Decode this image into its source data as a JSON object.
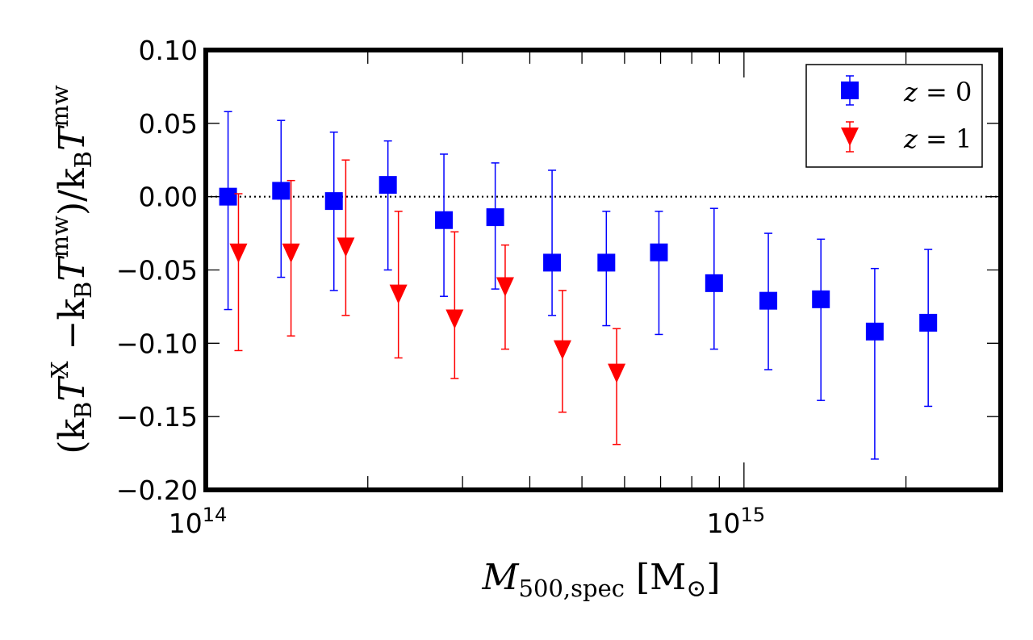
{
  "chart_data": {
    "type": "scatter",
    "xscale": "log",
    "xlim": [
      100000000000000.0,
      3000000000000000.0
    ],
    "ylim": [
      -0.2,
      0.1
    ],
    "yticks": [
      -0.2,
      -0.15,
      -0.1,
      -0.05,
      0.0,
      0.05,
      0.1
    ],
    "ytick_labels": [
      "−0.20",
      "−0.15",
      "−0.10",
      "−0.05",
      "0.00",
      "0.05",
      "0.10"
    ],
    "xtick_labels": [
      {
        "base": "10",
        "exp": "14",
        "value": 100000000000000.0
      },
      {
        "base": "10",
        "exp": "15",
        "value": 1000000000000000.0
      }
    ],
    "xlabel": {
      "main": "M",
      "sub": "500,spec",
      "unit_open": "[M",
      "unit_symbol": "⊙",
      "unit_close": "]"
    },
    "ylabel": "(kʙTˣ − kʙTᵐʷ)/kʙTᵐʷ",
    "ylabel_parts": {
      "open": "(k",
      "b1": "B",
      "t1": "T",
      "x": "X",
      "minus": " −k",
      "b2": "B",
      "t2": "T",
      "mw1": "mw",
      "mid": ")/k",
      "b3": "B",
      "t3": "T",
      "mw2": "mw"
    },
    "reference_line": {
      "y": 0.0,
      "style": "dotted"
    },
    "legend": {
      "position": "top-right",
      "entries": [
        {
          "label_var": "z",
          "label_eq": " = 0",
          "series": 0
        },
        {
          "label_var": "z",
          "label_eq": " = 1",
          "series": 1
        }
      ]
    },
    "series": [
      {
        "name": "z = 0",
        "color": "#0000ff",
        "marker": "square",
        "points": [
          {
            "x": 110000000000000.0,
            "y": 0.0,
            "lo": -0.077,
            "hi": 0.058
          },
          {
            "x": 138000000000000.0,
            "y": 0.004,
            "lo": -0.055,
            "hi": 0.052
          },
          {
            "x": 173000000000000.0,
            "y": -0.003,
            "lo": -0.064,
            "hi": 0.044
          },
          {
            "x": 218000000000000.0,
            "y": 0.008,
            "lo": -0.05,
            "hi": 0.038
          },
          {
            "x": 277000000000000.0,
            "y": -0.016,
            "lo": -0.068,
            "hi": 0.029
          },
          {
            "x": 345000000000000.0,
            "y": -0.014,
            "lo": -0.063,
            "hi": 0.023
          },
          {
            "x": 440000000000000.0,
            "y": -0.045,
            "lo": -0.081,
            "hi": 0.018
          },
          {
            "x": 555000000000000.0,
            "y": -0.045,
            "lo": -0.088,
            "hi": -0.01
          },
          {
            "x": 695000000000000.0,
            "y": -0.038,
            "lo": -0.094,
            "hi": -0.01
          },
          {
            "x": 880000000000000.0,
            "y": -0.059,
            "lo": -0.104,
            "hi": -0.008
          },
          {
            "x": 1110000000000000.0,
            "y": -0.071,
            "lo": -0.118,
            "hi": -0.025
          },
          {
            "x": 1390000000000000.0,
            "y": -0.07,
            "lo": -0.139,
            "hi": -0.029
          },
          {
            "x": 1750000000000000.0,
            "y": -0.092,
            "lo": -0.179,
            "hi": -0.049
          },
          {
            "x": 2200000000000000.0,
            "y": -0.086,
            "lo": -0.143,
            "hi": -0.036
          }
        ]
      },
      {
        "name": "z = 1",
        "color": "#ff0000",
        "marker": "triangle-down",
        "points": [
          {
            "x": 115000000000000.0,
            "y": -0.038,
            "lo": -0.105,
            "hi": 0.002
          },
          {
            "x": 144000000000000.0,
            "y": -0.038,
            "lo": -0.095,
            "hi": 0.011
          },
          {
            "x": 182000000000000.0,
            "y": -0.034,
            "lo": -0.081,
            "hi": 0.025
          },
          {
            "x": 228000000000000.0,
            "y": -0.066,
            "lo": -0.11,
            "hi": -0.01
          },
          {
            "x": 290000000000000.0,
            "y": -0.083,
            "lo": -0.124,
            "hi": -0.024
          },
          {
            "x": 360000000000000.0,
            "y": -0.061,
            "lo": -0.104,
            "hi": -0.033
          },
          {
            "x": 460000000000000.0,
            "y": -0.104,
            "lo": -0.147,
            "hi": -0.064
          },
          {
            "x": 580000000000000.0,
            "y": -0.12,
            "lo": -0.169,
            "hi": -0.09
          }
        ]
      }
    ]
  }
}
